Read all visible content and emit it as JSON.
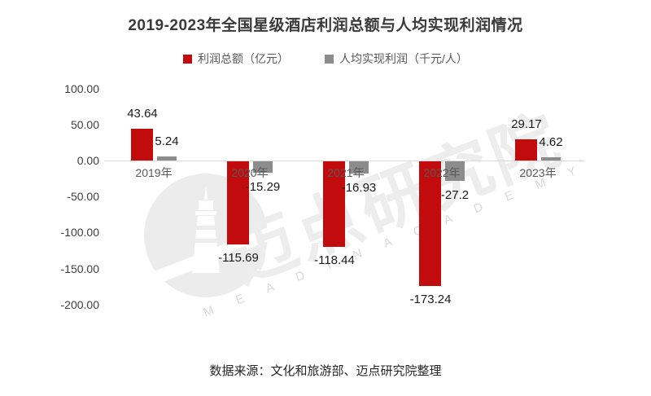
{
  "title": "2019-2023年全国星级酒店利润总额与人均实现利润情况",
  "legend": [
    {
      "label": "利润总额（亿元）",
      "color": "#c20b0c"
    },
    {
      "label": "人均实现利润（千元/人）",
      "color": "#8c8c8c"
    }
  ],
  "source": "数据来源：文化和旅游部、迈点研究院整理",
  "watermark": {
    "cn": "迈点研究院",
    "en": "M E A D I N   A C A D E M Y",
    "logo": "lighthouse-icon",
    "circle_color": "#ececec"
  },
  "chart_data": {
    "type": "bar",
    "categories": [
      "2019年",
      "2020年",
      "2021年",
      "2022年",
      "2023年"
    ],
    "series": [
      {
        "name": "利润总额（亿元）",
        "color": "#c20b0c",
        "values": [
          43.64,
          -115.69,
          -118.44,
          -173.24,
          29.17
        ],
        "labels": [
          "43.64",
          "-115.69",
          "-118.44",
          "-173.24",
          "29.17"
        ]
      },
      {
        "name": "人均实现利润（千元/人）",
        "color": "#8c8c8c",
        "values": [
          5.24,
          -15.29,
          -16.93,
          -27.2,
          4.62
        ],
        "labels": [
          "5.24",
          "-15.29",
          "-16.93",
          "-27.2",
          "4.62"
        ]
      }
    ],
    "yticks": [
      100,
      50,
      0,
      -50,
      -100,
      -150,
      -200
    ],
    "ytick_labels": [
      "100.00",
      "50.00",
      "0.00",
      "-50.00",
      "-100.00",
      "-150.00",
      "-200.00"
    ],
    "ylim": [
      -200,
      100
    ],
    "grid": false,
    "legend_position": "top",
    "axis_color": "#d9d9d9"
  }
}
